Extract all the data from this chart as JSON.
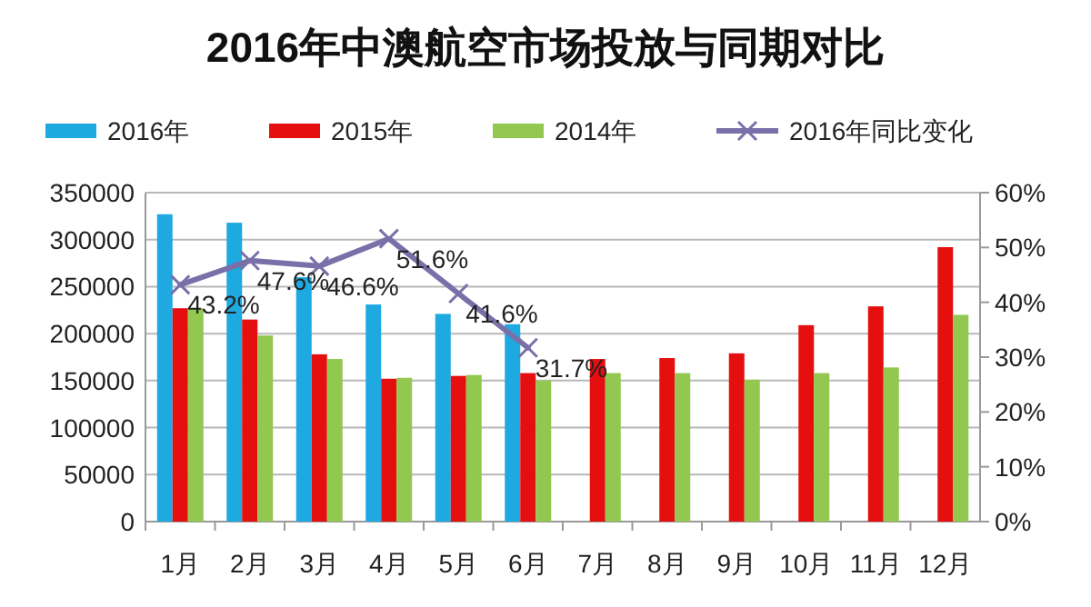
{
  "chart_data": {
    "type": "bar",
    "title": "2016年中澳航空市场投放与同期对比",
    "categories": [
      "1月",
      "2月",
      "3月",
      "4月",
      "5月",
      "6月",
      "7月",
      "8月",
      "9月",
      "10月",
      "11月",
      "12月"
    ],
    "series": [
      {
        "name": "2016年",
        "color": "#1fa9e1",
        "values": [
          327000,
          318000,
          260000,
          231000,
          221000,
          210000,
          null,
          null,
          null,
          null,
          null,
          null
        ]
      },
      {
        "name": "2015年",
        "color": "#e50f0f",
        "values": [
          227000,
          215000,
          178000,
          152000,
          155000,
          158000,
          173000,
          174000,
          179000,
          209000,
          229000,
          292000
        ]
      },
      {
        "name": "2014年",
        "color": "#92c850",
        "values": [
          227000,
          198000,
          173000,
          153000,
          156000,
          150000,
          158000,
          158000,
          151000,
          158000,
          164000,
          220000
        ]
      },
      {
        "name": "2016年同比变化",
        "type": "line",
        "axis": "y2",
        "color": "#7a6fa8",
        "marker": "cross",
        "values": [
          43.2,
          47.6,
          46.6,
          51.6,
          41.6,
          31.7,
          null,
          null,
          null,
          null,
          null,
          null
        ],
        "value_labels": [
          "43.2%",
          "47.6%",
          "46.6%",
          "51.6%",
          "41.6%",
          "31.7%",
          null,
          null,
          null,
          null,
          null,
          null
        ]
      }
    ],
    "ylim": [
      0,
      350000
    ],
    "yticks": [
      0,
      50000,
      100000,
      150000,
      200000,
      250000,
      300000,
      350000
    ],
    "y2lim": [
      0,
      60
    ],
    "y2ticks": [
      {
        "value": 0,
        "label": "0%"
      },
      {
        "value": 10,
        "label": "10%"
      },
      {
        "value": 20,
        "label": "20%"
      },
      {
        "value": 30,
        "label": "30%"
      },
      {
        "value": 40,
        "label": "40%"
      },
      {
        "value": 50,
        "label": "50%"
      },
      {
        "value": 60,
        "label": "60%"
      }
    ],
    "grid": "y",
    "legend": "top"
  }
}
